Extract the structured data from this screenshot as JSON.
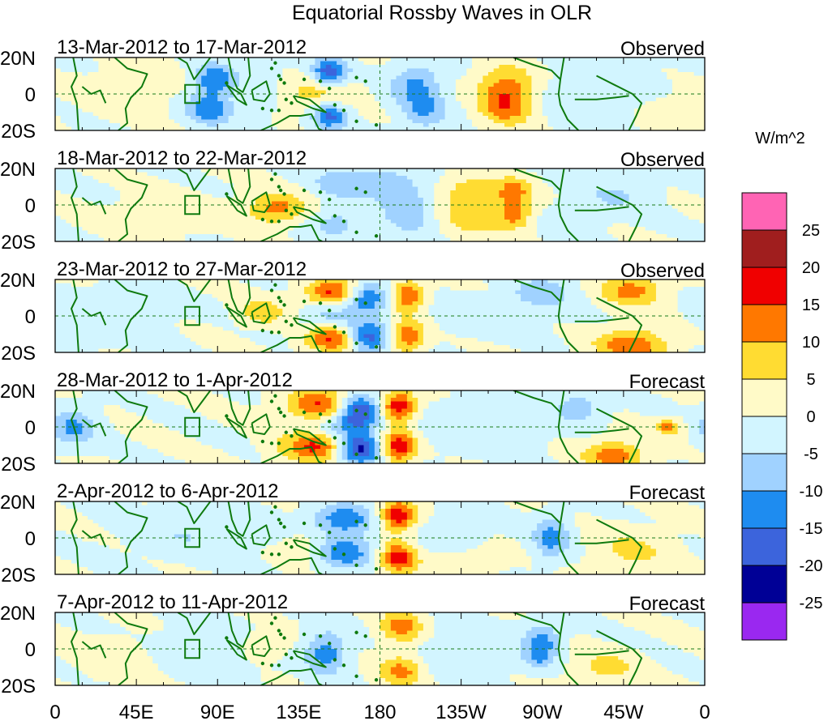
{
  "chart_data": {
    "type": "heatmap",
    "title": "Equatorial Rossby Waves in OLR",
    "units": "W/m^2",
    "x_ticks": [
      "0",
      "45E",
      "90E",
      "135E",
      "180",
      "135W",
      "90W",
      "45W",
      "0"
    ],
    "y_ticks": [
      "20N",
      "0",
      "20S"
    ],
    "x_range": [
      0,
      360
    ],
    "y_range": [
      -20,
      20
    ],
    "levels": [
      -25,
      -20,
      -15,
      -10,
      -5,
      0,
      5,
      10,
      15,
      20,
      25
    ],
    "level_labels": [
      "25",
      "20",
      "15",
      "10",
      "5",
      "0",
      "-5",
      "-10",
      "-15",
      "-20",
      "-25"
    ],
    "colors": [
      "#9a28f0",
      "#000096",
      "#3c64dc",
      "#1e8cf0",
      "#a0d2ff",
      "#d2f5ff",
      "#fffac8",
      "#ffdc32",
      "#ff7800",
      "#f00000",
      "#a01e1e",
      "#ff64b4"
    ],
    "panels": [
      {
        "period": "13-Mar-2012 to 17-Mar-2012",
        "kind": "Observed",
        "blobs": [
          [
            88,
            8,
            8,
            6,
            -14
          ],
          [
            85,
            -8,
            9,
            6,
            -14
          ],
          [
            152,
            12,
            7,
            5,
            -19
          ],
          [
            152,
            -12,
            7,
            5,
            -17
          ],
          [
            140,
            0,
            16,
            8,
            8
          ],
          [
            200,
            5,
            10,
            8,
            -11
          ],
          [
            205,
            -10,
            9,
            7,
            -9
          ],
          [
            250,
            5,
            11,
            8,
            12
          ],
          [
            250,
            -8,
            10,
            7,
            12
          ],
          [
            120,
            2,
            14,
            12,
            -4
          ],
          [
            45,
            3,
            18,
            10,
            3
          ],
          [
            300,
            0,
            30,
            15,
            -3
          ],
          [
            340,
            -10,
            12,
            8,
            4
          ]
        ]
      },
      {
        "period": "18-Mar-2012 to 22-Mar-2012",
        "kind": "Observed",
        "blobs": [
          [
            160,
            12,
            12,
            6,
            -9
          ],
          [
            155,
            -10,
            12,
            6,
            -7
          ],
          [
            180,
            12,
            8,
            6,
            -5
          ],
          [
            195,
            0,
            10,
            12,
            -9
          ],
          [
            230,
            8,
            12,
            6,
            8
          ],
          [
            230,
            -8,
            11,
            6,
            8
          ],
          [
            250,
            0,
            10,
            8,
            5
          ],
          [
            255,
            8,
            6,
            5,
            9
          ],
          [
            255,
            -6,
            6,
            5,
            9
          ],
          [
            123,
            -2,
            12,
            6,
            12
          ],
          [
            60,
            -5,
            18,
            7,
            4
          ],
          [
            310,
            5,
            15,
            8,
            -5
          ],
          [
            285,
            -10,
            10,
            7,
            -4
          ]
        ]
      },
      {
        "period": "23-Mar-2012 to 27-Mar-2012",
        "kind": "Observed",
        "blobs": [
          [
            155,
            13,
            11,
            5,
            17
          ],
          [
            155,
            -13,
            11,
            5,
            17
          ],
          [
            172,
            10,
            9,
            6,
            -18
          ],
          [
            172,
            -12,
            9,
            6,
            -20
          ],
          [
            195,
            11,
            7,
            6,
            15
          ],
          [
            195,
            -11,
            7,
            6,
            15
          ],
          [
            150,
            0,
            10,
            4,
            -6
          ],
          [
            115,
            2,
            9,
            5,
            9
          ],
          [
            270,
            13,
            12,
            6,
            -8
          ],
          [
            320,
            14,
            12,
            6,
            12
          ],
          [
            320,
            -16,
            14,
            6,
            14
          ],
          [
            30,
            0,
            22,
            10,
            -4
          ],
          [
            240,
            0,
            25,
            8,
            -3
          ]
        ]
      },
      {
        "period": "28-Mar-2012 to 1-Apr-2012",
        "kind": "Forecast",
        "blobs": [
          [
            148,
            12,
            14,
            6,
            16
          ],
          [
            145,
            -11,
            14,
            6,
            16
          ],
          [
            168,
            9,
            9,
            6,
            -24
          ],
          [
            168,
            -12,
            9,
            6,
            -24
          ],
          [
            190,
            11,
            7,
            6,
            20
          ],
          [
            190,
            -11,
            7,
            6,
            20
          ],
          [
            160,
            0,
            12,
            4,
            -7
          ],
          [
            10,
            0,
            9,
            7,
            -11
          ],
          [
            310,
            -16,
            12,
            6,
            13
          ],
          [
            340,
            0,
            5,
            3,
            12
          ],
          [
            290,
            11,
            10,
            6,
            -8
          ],
          [
            235,
            0,
            25,
            10,
            -4
          ]
        ]
      },
      {
        "period": "2-Apr-2012 to 6-Apr-2012",
        "kind": "Forecast",
        "blobs": [
          [
            160,
            10,
            12,
            6,
            -14
          ],
          [
            160,
            -8,
            12,
            6,
            -14
          ],
          [
            190,
            12,
            7,
            6,
            19
          ],
          [
            190,
            -11,
            7,
            6,
            18
          ],
          [
            140,
            -5,
            10,
            6,
            5
          ],
          [
            220,
            0,
            14,
            10,
            -4
          ],
          [
            275,
            0,
            7,
            8,
            -12
          ],
          [
            80,
            4,
            25,
            10,
            -5
          ],
          [
            320,
            -7,
            15,
            8,
            6
          ],
          [
            225,
            -12,
            15,
            6,
            5
          ]
        ]
      },
      {
        "period": "7-Apr-2012 to 11-Apr-2012",
        "kind": "Forecast",
        "blobs": [
          [
            150,
            -2,
            8,
            8,
            -13
          ],
          [
            192,
            12,
            8,
            6,
            13
          ],
          [
            192,
            -12,
            8,
            6,
            12
          ],
          [
            115,
            2,
            12,
            6,
            6
          ],
          [
            270,
            5,
            7,
            6,
            -12
          ],
          [
            268,
            -5,
            6,
            5,
            -8
          ],
          [
            230,
            0,
            20,
            10,
            -4
          ],
          [
            35,
            -5,
            15,
            8,
            4
          ],
          [
            90,
            0,
            25,
            10,
            -4
          ],
          [
            305,
            -10,
            12,
            6,
            7
          ]
        ]
      }
    ]
  }
}
